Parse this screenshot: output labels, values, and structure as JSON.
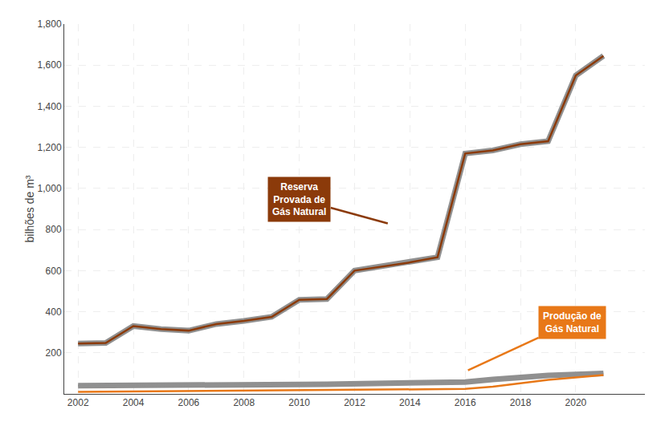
{
  "chart_data": {
    "type": "line",
    "y_label": "bilhões de m³",
    "x": [
      2002,
      2003,
      2004,
      2005,
      2006,
      2007,
      2008,
      2009,
      2010,
      2011,
      2012,
      2013,
      2014,
      2015,
      2016,
      2017,
      2018,
      2019,
      2020,
      2021
    ],
    "series": [
      {
        "color": "#8B3A0A",
        "values": [
          245,
          248,
          330,
          315,
          308,
          340,
          355,
          375,
          458,
          462,
          600,
          620,
          640,
          665,
          1170,
          1185,
          1215,
          1230,
          1550,
          1645
        ]
      },
      {
        "color": "#E87818",
        "values": [
          10,
          11,
          12,
          12,
          13,
          14,
          15,
          15,
          16,
          17,
          18,
          19,
          21,
          22,
          24,
          35,
          52,
          68,
          80,
          92
        ]
      },
      {
        "color": "#909090",
        "values": [
          40,
          40,
          42,
          42,
          42,
          43,
          44,
          45,
          46,
          47,
          48,
          50,
          52,
          55,
          58,
          70,
          82,
          90,
          95,
          100
        ]
      }
    ],
    "xlim": [
      2001.5,
      2022.5
    ],
    "xticks": [
      2002,
      2004,
      2006,
      2008,
      2010,
      2012,
      2014,
      2016,
      2018,
      2020
    ],
    "ylim": [
      0,
      1800
    ],
    "yticks": [
      200,
      400,
      600,
      800,
      {
        "value": 1000,
        "label": "1,000"
      },
      {
        "value": 1200,
        "label": "1,200"
      },
      {
        "value": 1400,
        "label": "1,400"
      },
      {
        "value": 1600,
        "label": "1,600"
      },
      {
        "value": 1800,
        "label": "1,800"
      }
    ],
    "grid": true,
    "annotations": [
      {
        "text": "Reserva\nProvada de\nGás Natural",
        "x": 2013.2,
        "y": 830,
        "color": "#8B3A0A"
      },
      {
        "text": "Produção de\nGás Natural",
        "x": 2016.1,
        "y": 115,
        "color": "#E87818"
      }
    ]
  }
}
